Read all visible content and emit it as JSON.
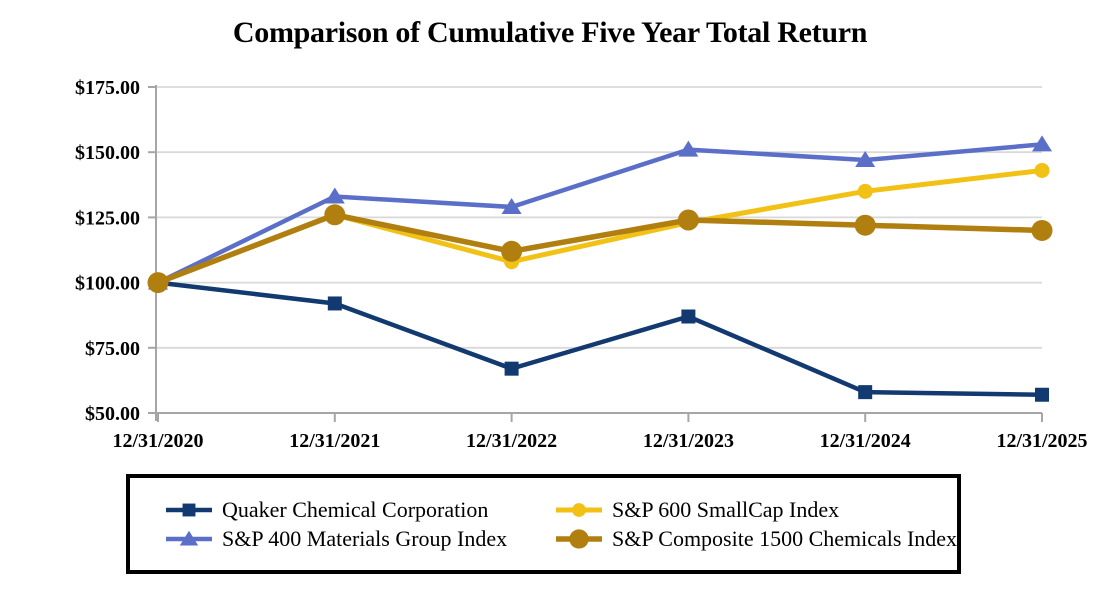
{
  "title": "Comparison of Cumulative Five Year Total Return",
  "chart_data": {
    "type": "line",
    "title": "Comparison of Cumulative Five Year Total Return",
    "xlabel": "",
    "ylabel": "",
    "categories": [
      "12/31/2020",
      "12/31/2021",
      "12/31/2022",
      "12/31/2023",
      "12/31/2024",
      "12/31/2025"
    ],
    "series": [
      {
        "id": "quaker",
        "name": "Quaker Chemical Corporation",
        "color": "#123A70",
        "marker": "square",
        "line_width": 4.5,
        "values": [
          100,
          92,
          67,
          87,
          58,
          57
        ]
      },
      {
        "id": "sp400",
        "name": "S&P 400 Materials Group Index",
        "color": "#5B6FC9",
        "marker": "triangle",
        "line_width": 4.5,
        "values": [
          100,
          133,
          129,
          151,
          147,
          153
        ]
      },
      {
        "id": "sp600",
        "name": "S&P 600 SmallCap Index",
        "color": "#F2C115",
        "marker": "circle-small",
        "line_width": 5,
        "values": [
          100,
          126,
          108,
          123,
          135,
          143
        ]
      },
      {
        "id": "sp1500",
        "name": "S&P Composite 1500 Chemicals Index",
        "color": "#B07F10",
        "marker": "circle-large",
        "line_width": 5.5,
        "values": [
          100,
          126,
          112,
          124,
          122,
          120
        ]
      }
    ],
    "ylim": [
      50,
      175
    ],
    "y_tick_values": [
      175,
      150,
      125,
      100,
      75,
      50
    ],
    "y_tick_labels": [
      "$175.00",
      "$150.00",
      "$125.00",
      "$100.00",
      "$75.00",
      "$50.00"
    ],
    "grid": true,
    "grid_color": "#D9D9D9",
    "axis_color": "#A6A6A6",
    "legend_position": "bottom",
    "legend_order": [
      "quaker",
      "sp600",
      "sp400",
      "sp1500"
    ]
  }
}
